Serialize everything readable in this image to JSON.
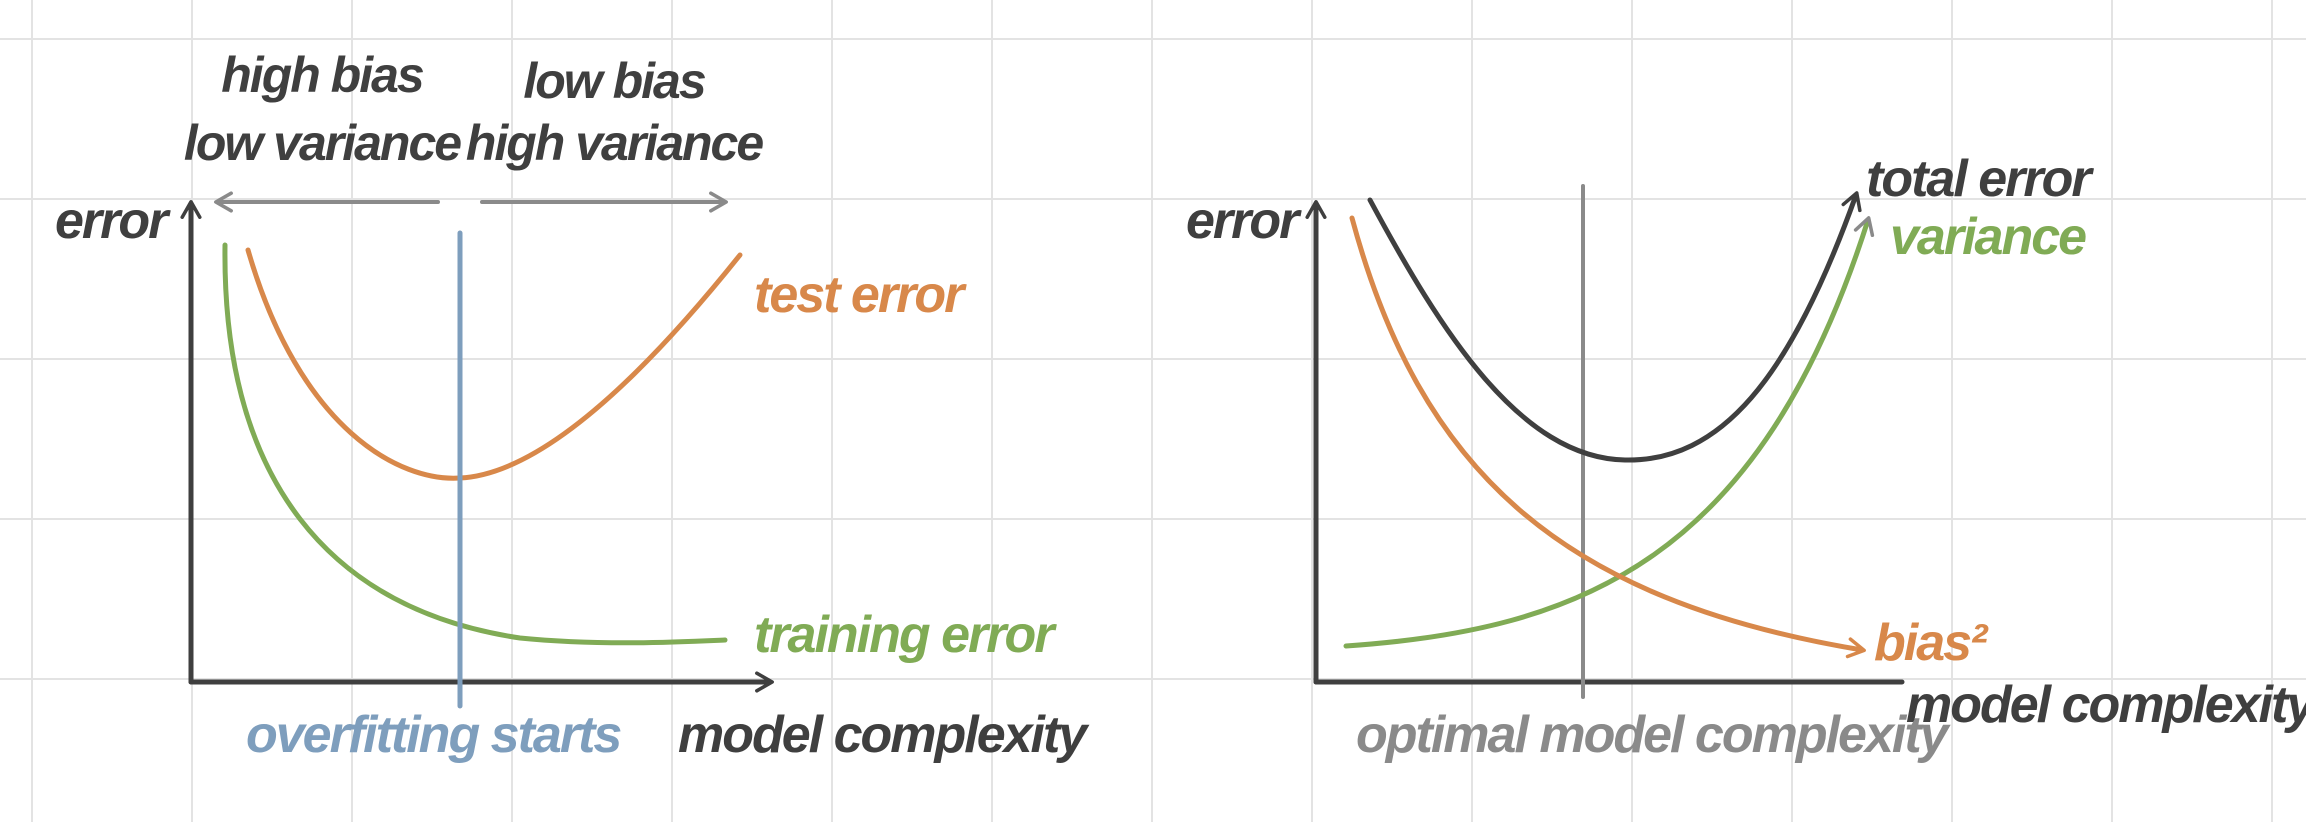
{
  "left_panel": {
    "axis_y_label": "error",
    "axis_x_label": "model complexity",
    "region_left": {
      "line1": "high bias",
      "line2": "low variance"
    },
    "region_right": {
      "line1": "low bias",
      "line2": "high variance"
    },
    "curves": {
      "test": {
        "label": "test error",
        "color": "#d8884a"
      },
      "training": {
        "label": "training error",
        "color": "#80ab55"
      }
    },
    "marker": {
      "label": "overfitting starts",
      "color": "#7e9ebd"
    }
  },
  "right_panel": {
    "axis_y_label": "error",
    "axis_x_label": "model complexity",
    "curves": {
      "total": {
        "label": "total error",
        "color": "#3f3f3f"
      },
      "variance": {
        "label": "variance",
        "color": "#80ab55"
      },
      "bias": {
        "label": "bias²",
        "color": "#d8884a"
      }
    },
    "marker": {
      "label": "optimal model complexity",
      "color": "#8a8a8a"
    }
  },
  "colors": {
    "axis": "#3f3f3f",
    "arrow_gray": "#8a8a8a",
    "grid": "#e3e3e3"
  }
}
